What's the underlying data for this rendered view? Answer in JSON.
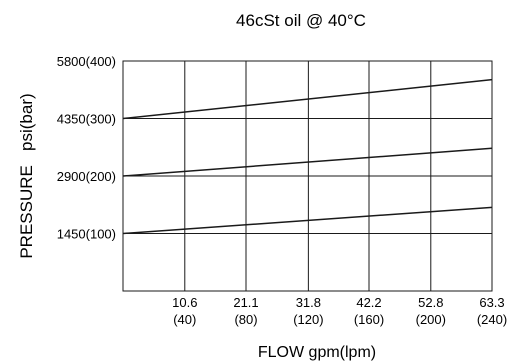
{
  "chart_data": {
    "type": "line",
    "title": "46cSt oil @ 40°C",
    "xlabel": "FLOW gpm(lpm)",
    "ylabel": "PRESSURE   psi(bar)",
    "x_ticks": [
      {
        "value": 10.6,
        "line1": "10.6",
        "line2": "(40)"
      },
      {
        "value": 21.1,
        "line1": "21.1",
        "line2": "(80)"
      },
      {
        "value": 31.8,
        "line1": "31.8",
        "line2": "(120)"
      },
      {
        "value": 42.2,
        "line1": "42.2",
        "line2": "(160)"
      },
      {
        "value": 52.8,
        "line1": "52.8",
        "line2": "(200)"
      },
      {
        "value": 63.3,
        "line1": "63.3",
        "line2": "(240)"
      }
    ],
    "y_ticks": [
      {
        "value": 1450,
        "label": "1450(100)"
      },
      {
        "value": 2900,
        "label": "2900(200)"
      },
      {
        "value": 4350,
        "label": "4350(300)"
      },
      {
        "value": 5800,
        "label": "5800(400)"
      }
    ],
    "xlim": [
      0,
      63.3
    ],
    "ylim": [
      0,
      5800
    ],
    "grid": true,
    "series": [
      {
        "x": [
          0,
          63.3
        ],
        "y": [
          1450,
          2110
        ]
      },
      {
        "x": [
          0,
          63.3
        ],
        "y": [
          2900,
          3600
        ]
      },
      {
        "x": [
          0,
          63.3
        ],
        "y": [
          4350,
          5330
        ]
      }
    ]
  }
}
